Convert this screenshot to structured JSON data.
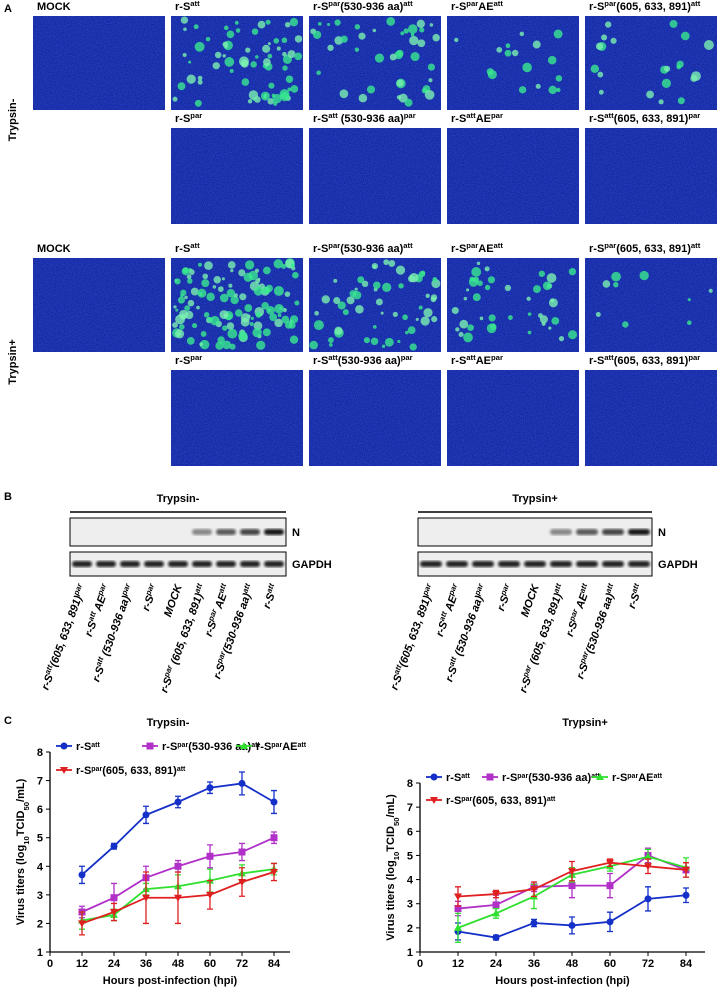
{
  "panel_a": {
    "label": "A",
    "groups": [
      {
        "condition": "Trypsin-",
        "rows": [
          [
            [
              "MOCK"
            ],
            [
              "r-S",
              "att"
            ],
            [
              "r-S",
              "par",
              "(530-936 aa)",
              "att"
            ],
            [
              "r-S",
              "par",
              "AE",
              "att"
            ],
            [
              "r-S",
              "par",
              "(605, 633, 891)",
              "att"
            ]
          ],
          [
            [
              "r-S",
              "par"
            ],
            [
              "r-S",
              "att",
              " (530-936 aa)",
              "par"
            ],
            [
              "r-S",
              "att",
              "AE",
              "par"
            ],
            [
              "r-S",
              "att",
              "(605, 633, 891)",
              "par"
            ]
          ]
        ]
      },
      {
        "condition": "Trypsin+",
        "rows": [
          [
            [
              "MOCK"
            ],
            [
              "r-S",
              "att"
            ],
            [
              "r-S",
              "par",
              "(530-936 aa)",
              "att"
            ],
            [
              "r-S",
              "par",
              "AE",
              "att"
            ],
            [
              "r-S",
              "par",
              "(605, 633, 891)",
              "att"
            ]
          ],
          [
            [
              "r-S",
              "par"
            ],
            [
              "r-S",
              "att",
              "(530-936 aa)",
              "par"
            ],
            [
              "r-S",
              "att",
              "AE",
              "par"
            ],
            [
              "r-S",
              "att",
              "(605, 633, 891)",
              "par"
            ]
          ]
        ]
      }
    ]
  },
  "panel_b": {
    "label": "B",
    "bands": [
      "N",
      "GAPDH"
    ],
    "blots": [
      {
        "condition": "Trypsin-",
        "lanes": [
          [
            "r-S",
            "att",
            "(605, 633, 891)",
            "par"
          ],
          [
            "r-S",
            "att",
            " AE",
            "par"
          ],
          [
            "r-S",
            "att",
            " (530-936 aa)",
            "par"
          ],
          [
            "r-S",
            "par"
          ],
          [
            "MOCK"
          ],
          [
            "r-S",
            "par",
            " (605, 633, 891)",
            "att"
          ],
          [
            "r-S",
            "par",
            " AE",
            "att"
          ],
          [
            "r-S",
            "par",
            "(530-936 aa)",
            "att"
          ],
          [
            "r-S",
            "att"
          ]
        ]
      },
      {
        "condition": "Trypsin+",
        "lanes": [
          [
            "r-S",
            "att",
            "(605, 633, 891)",
            "par"
          ],
          [
            "r-S",
            "att",
            " AE",
            "par"
          ],
          [
            "r-S",
            "att",
            " (530-936 aa)",
            "par"
          ],
          [
            "r-S",
            "par"
          ],
          [
            "MOCK"
          ],
          [
            "r-S",
            "par",
            " (605, 633, 891)",
            "att"
          ],
          [
            "r-S",
            "par",
            " AE",
            "att"
          ],
          [
            "r-S",
            "par",
            "(530-936 aa)",
            "att"
          ],
          [
            "r-S",
            "att"
          ]
        ]
      }
    ]
  },
  "panel_c_label": "C",
  "chart_data": [
    {
      "type": "line",
      "title": "Trypsin-",
      "x_label": "Hours post-infection (hpi)",
      "y_label": [
        "Virus titers (log",
        "10",
        "TCID",
        "50",
        "/mL)"
      ],
      "x": [
        12,
        24,
        36,
        48,
        60,
        72,
        84
      ],
      "xlim": [
        0,
        90
      ],
      "xticks": [
        0,
        12,
        24,
        36,
        48,
        60,
        72,
        84
      ],
      "ylim": [
        1,
        8
      ],
      "yticks": [
        1,
        2,
        3,
        4,
        5,
        6,
        7,
        8
      ],
      "series": [
        {
          "name": [
            "r-S",
            "att"
          ],
          "color": "#1530c8",
          "marker": "circle",
          "values": [
            3.7,
            4.7,
            5.8,
            6.25,
            6.75,
            6.9,
            6.25
          ],
          "errors": [
            0.3,
            0.1,
            0.3,
            0.2,
            0.2,
            0.4,
            0.4
          ]
        },
        {
          "name": [
            "r-S",
            "par",
            "(530-936 aa)",
            "att"
          ],
          "color": "#b030c8",
          "marker": "square",
          "values": [
            2.4,
            2.9,
            3.6,
            4.0,
            4.35,
            4.5,
            5.0
          ],
          "errors": [
            0.2,
            0.5,
            0.4,
            0.2,
            0.4,
            0.3,
            0.2
          ]
        },
        {
          "name": [
            "r-S",
            "par",
            "AE",
            "att"
          ],
          "color": "#30e030",
          "marker": "triangle",
          "values": [
            2.1,
            2.3,
            3.2,
            3.3,
            3.5,
            3.75,
            3.9
          ],
          "errors": [
            0.3,
            0.2,
            0.2,
            0.4,
            0.4,
            0.3,
            0.2
          ]
        },
        {
          "name": [
            "r-S",
            "par",
            "(605, 633, 891)",
            "att"
          ],
          "color": "#e02020",
          "marker": "down-triangle",
          "values": [
            2.0,
            2.4,
            2.9,
            2.9,
            3.0,
            3.45,
            3.8
          ],
          "errors": [
            0.4,
            0.3,
            0.9,
            0.9,
            0.5,
            0.5,
            0.3
          ]
        }
      ]
    },
    {
      "type": "line",
      "title": "Trypsin+",
      "x_label": "Hours post-infection (hpi)",
      "y_label": [
        "Virus titers (log",
        "10",
        "TCID",
        "50",
        "/mL)"
      ],
      "x": [
        12,
        24,
        36,
        48,
        60,
        72,
        84
      ],
      "xlim": [
        0,
        90
      ],
      "xticks": [
        0,
        12,
        24,
        36,
        48,
        60,
        72,
        84
      ],
      "ylim": [
        1,
        8
      ],
      "yticks": [
        1,
        2,
        3,
        4,
        5,
        6,
        7,
        8
      ],
      "series": [
        {
          "name": [
            "r-S",
            "att"
          ],
          "color": "#1530c8",
          "marker": "circle",
          "values": [
            1.85,
            1.6,
            2.2,
            2.1,
            2.25,
            3.2,
            3.35
          ],
          "errors": [
            0.35,
            0.1,
            0.15,
            0.35,
            0.4,
            0.5,
            0.3
          ]
        },
        {
          "name": [
            "r-S",
            "par",
            "(530-936 aa)",
            "att"
          ],
          "color": "#b030c8",
          "marker": "square",
          "values": [
            2.8,
            2.95,
            3.7,
            3.75,
            3.75,
            5.0,
            4.4
          ],
          "errors": [
            0.3,
            0.4,
            0.2,
            0.5,
            0.5,
            0.3,
            0.3
          ]
        },
        {
          "name": [
            "r-S",
            "par",
            "AE",
            "att"
          ],
          "color": "#30e030",
          "marker": "triangle",
          "values": [
            2.0,
            2.6,
            3.3,
            4.2,
            4.55,
            4.95,
            4.5
          ],
          "errors": [
            0.6,
            0.2,
            0.5,
            0.3,
            0.2,
            0.3,
            0.4
          ]
        },
        {
          "name": [
            "r-S",
            "par",
            "(605, 633, 891)",
            "att"
          ],
          "color": "#e02020",
          "marker": "down-triangle",
          "values": [
            3.3,
            3.4,
            3.6,
            4.35,
            4.7,
            4.55,
            4.4
          ],
          "errors": [
            0.4,
            0.15,
            0.3,
            0.4,
            0.15,
            0.3,
            0.3
          ]
        }
      ]
    }
  ]
}
